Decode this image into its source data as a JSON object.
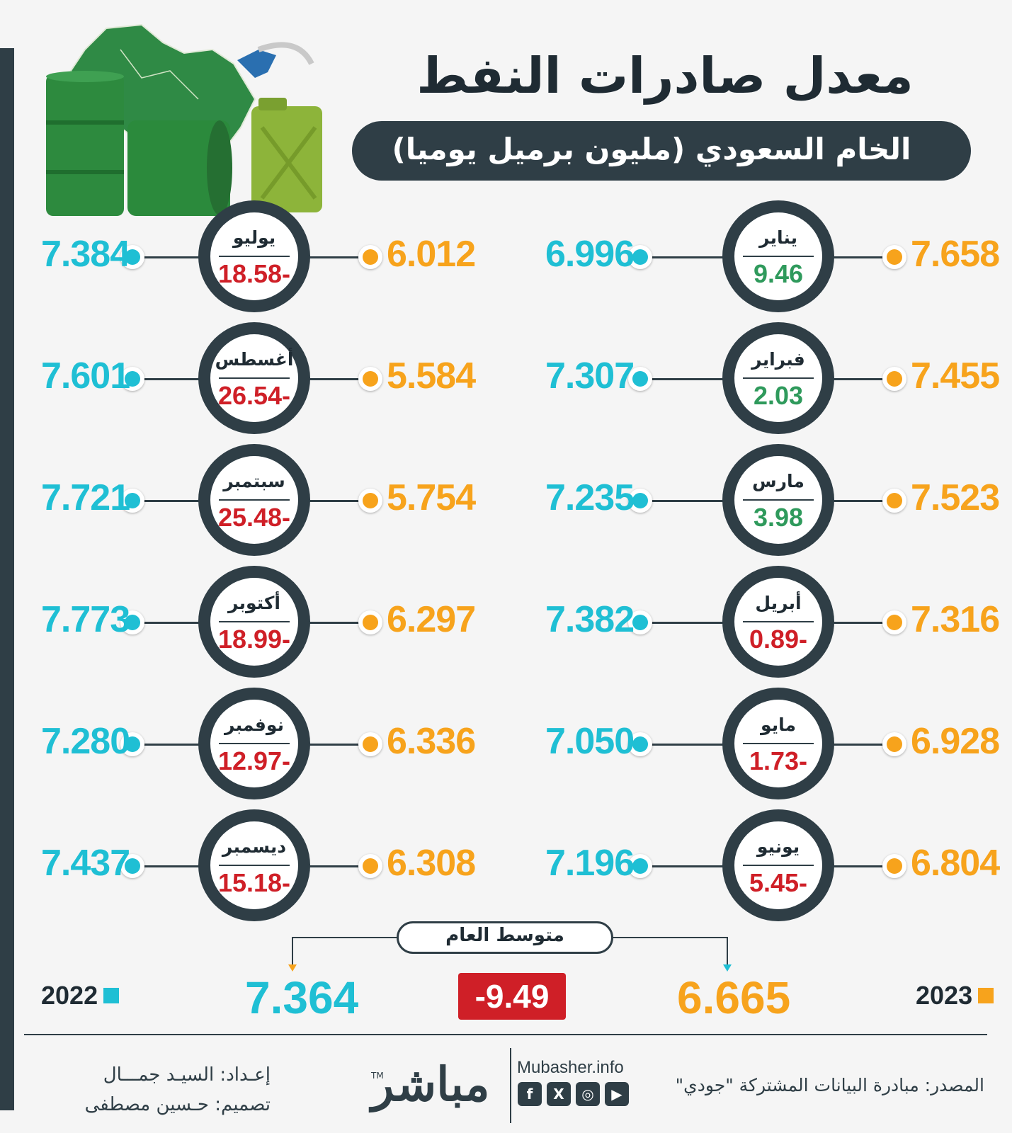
{
  "title": "معدل صادرات النفط",
  "subtitle": "الخام السعودي (مليون برميل يوميا)",
  "colors": {
    "year_2023": "#f7a31c",
    "year_2022": "#1fbfd4",
    "positive": "#2f9a5c",
    "negative": "#cf1f27",
    "dark": "#2f3e46"
  },
  "months": [
    {
      "name": "يناير",
      "change": "9.46",
      "sign": "pos",
      "v2023": "7.658",
      "v2022": "6.996"
    },
    {
      "name": "فبراير",
      "change": "2.03",
      "sign": "pos",
      "v2023": "7.455",
      "v2022": "7.307"
    },
    {
      "name": "مارس",
      "change": "3.98",
      "sign": "pos",
      "v2023": "7.523",
      "v2022": "7.235"
    },
    {
      "name": "أبريل",
      "change": "0.89-",
      "sign": "neg",
      "v2023": "7.316",
      "v2022": "7.382"
    },
    {
      "name": "مايو",
      "change": "1.73-",
      "sign": "neg",
      "v2023": "6.928",
      "v2022": "7.050"
    },
    {
      "name": "يونيو",
      "change": "5.45-",
      "sign": "neg",
      "v2023": "6.804",
      "v2022": "7.196"
    },
    {
      "name": "يوليو",
      "change": "18.58-",
      "sign": "neg",
      "v2023": "6.012",
      "v2022": "7.384"
    },
    {
      "name": "أغسطس",
      "change": "26.54-",
      "sign": "neg",
      "v2023": "5.584",
      "v2022": "7.601"
    },
    {
      "name": "سبتمبر",
      "change": "25.48-",
      "sign": "neg",
      "v2023": "5.754",
      "v2022": "7.721"
    },
    {
      "name": "أكتوبر",
      "change": "18.99-",
      "sign": "neg",
      "v2023": "6.297",
      "v2022": "7.773"
    },
    {
      "name": "نوفمبر",
      "change": "12.97-",
      "sign": "neg",
      "v2023": "6.336",
      "v2022": "7.280"
    },
    {
      "name": "ديسمبر",
      "change": "15.18-",
      "sign": "neg",
      "v2023": "6.308",
      "v2022": "7.437"
    }
  ],
  "average": {
    "label": "متوسط العام",
    "v2022": "7.364",
    "v2023": "6.665",
    "change": "-9.49"
  },
  "legend": {
    "year_2022": "2022",
    "year_2023": "2023"
  },
  "footer": {
    "prepared_by": "إعـداد: السيـد جمـــال",
    "designed_by": "تصميم: حـسين مصطفى",
    "logo": "مباشر",
    "tm": "TM",
    "website": "Mubasher.info",
    "source": "المصدر: مبادرة البيانات المشتركة \"جودي\"",
    "social_icons": [
      "facebook-icon",
      "x-icon",
      "instagram-icon",
      "youtube-icon"
    ]
  }
}
